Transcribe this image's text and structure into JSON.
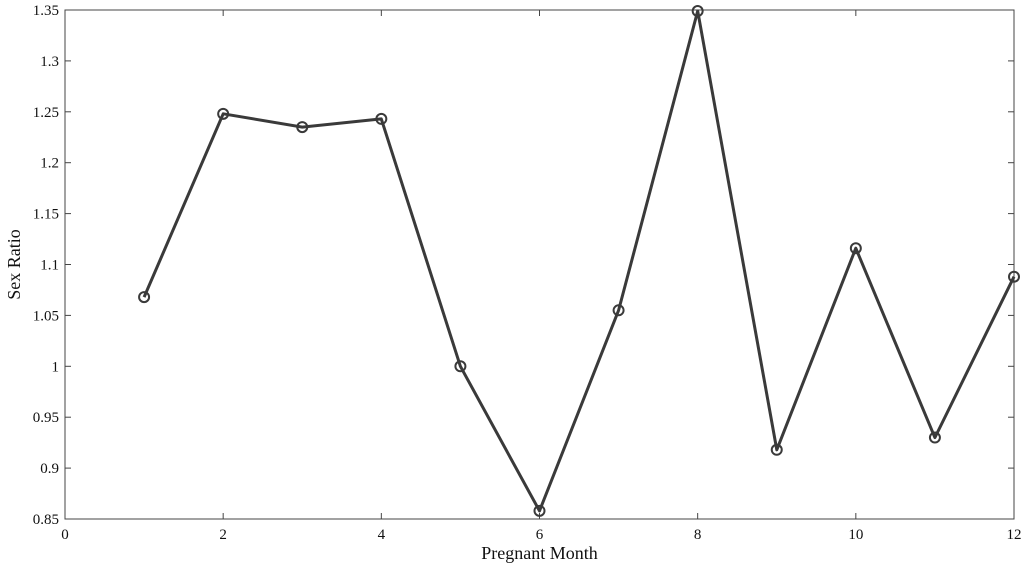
{
  "chart_data": {
    "type": "line",
    "title": "",
    "xlabel": "Pregnant Month",
    "ylabel": "Sex Ratio",
    "xlim": [
      0,
      12
    ],
    "ylim": [
      0.85,
      1.35
    ],
    "xticks": [
      0,
      2,
      4,
      6,
      8,
      10,
      12
    ],
    "yticks": [
      0.85,
      0.9,
      0.95,
      1,
      1.05,
      1.1,
      1.15,
      1.2,
      1.25,
      1.3,
      1.35
    ],
    "xtick_labels": [
      "0",
      "2",
      "4",
      "6",
      "8",
      "10",
      "12"
    ],
    "ytick_labels": [
      "0.85",
      "0.9",
      "0.95",
      "1",
      "1.05",
      "1.1",
      "1.15",
      "1.2",
      "1.25",
      "1.3",
      "1.35"
    ],
    "grid": false,
    "marker": "circle",
    "line_color": "#3a3a3a",
    "series": [
      {
        "x": [
          1,
          2,
          3,
          4,
          5,
          6,
          7,
          8,
          9,
          10,
          11,
          12
        ],
        "values": [
          1.068,
          1.248,
          1.235,
          1.243,
          1.0,
          0.858,
          1.055,
          1.349,
          0.918,
          1.116,
          0.93,
          1.088
        ]
      }
    ]
  }
}
